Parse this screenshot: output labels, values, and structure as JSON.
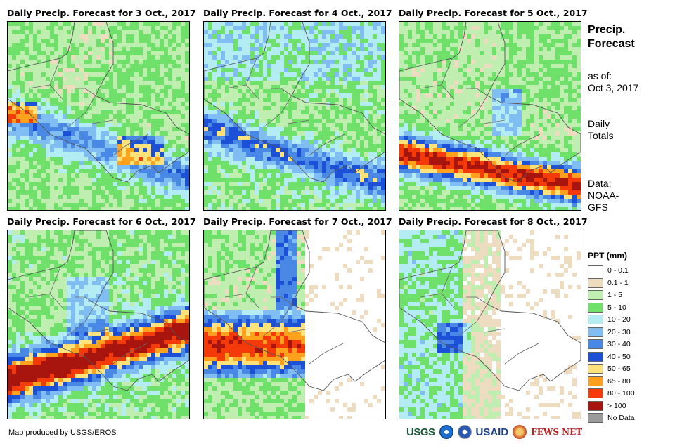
{
  "panels": [
    {
      "title": "Daily Precip. Forecast for 3 Oct., 2017",
      "profile": "p3"
    },
    {
      "title": "Daily Precip. Forecast for 4 Oct., 2017",
      "profile": "p4"
    },
    {
      "title": "Daily Precip. Forecast for 5 Oct., 2017",
      "profile": "p5"
    },
    {
      "title": "Daily Precip. Forecast for 6 Oct., 2017",
      "profile": "p6"
    },
    {
      "title": "Daily Precip. Forecast for 7 Oct., 2017",
      "profile": "p7"
    },
    {
      "title": "Daily Precip. Forecast for 8 Oct., 2017",
      "profile": "p8"
    }
  ],
  "sidebar": {
    "title_line1": "Precip.",
    "title_line2": "Forecast",
    "asof_line1": "as of:",
    "asof_line2": "Oct 3, 2017",
    "totals_line1": "Daily",
    "totals_line2": "Totals",
    "data_line1": "Data:",
    "data_line2": "NOAA-",
    "data_line3": "GFS"
  },
  "legend": {
    "title": "PPT (mm)",
    "items": [
      {
        "label": "0 - 0.1",
        "color": "#ffffff"
      },
      {
        "label": "0.1 - 1",
        "color": "#eedcc0"
      },
      {
        "label": "1 - 5",
        "color": "#bfeeb0"
      },
      {
        "label": "5 - 10",
        "color": "#6fe06a"
      },
      {
        "label": "10 - 20",
        "color": "#b4ecf4"
      },
      {
        "label": "20 - 30",
        "color": "#80bdf2"
      },
      {
        "label": "30 - 40",
        "color": "#4a88e6"
      },
      {
        "label": "40 - 50",
        "color": "#1c50d6"
      },
      {
        "label": "50 - 65",
        "color": "#ffe27a"
      },
      {
        "label": "65 - 80",
        "color": "#ffa11c"
      },
      {
        "label": "80 - 100",
        "color": "#f53a0a"
      },
      {
        "label": "> 100",
        "color": "#a8140e"
      },
      {
        "label": "No Data",
        "color": "#9a9a9a"
      }
    ]
  },
  "footer": {
    "credit": "Map produced by USGS/EROS",
    "logos": {
      "usgs": "USGS",
      "usaid": "USAID",
      "fews": "FEWS NET"
    }
  }
}
